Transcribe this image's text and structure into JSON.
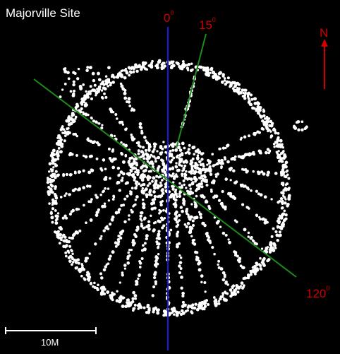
{
  "title": "Majorville Site",
  "bearings": [
    {
      "label": "0",
      "unit": "0",
      "angle_deg": 0
    },
    {
      "label": "15",
      "unit": "0",
      "angle_deg": 15
    },
    {
      "label": "120",
      "unit": "0",
      "angle_deg": 120
    }
  ],
  "north_label": "N",
  "scale_label": "10M",
  "colors": {
    "background": "#000000",
    "dots": "#ffffff",
    "line_0": "#1a1adc",
    "line_15": "#1e8a1e",
    "line_120": "#1e8a1e",
    "labels": "#d00000",
    "north_arrow": "#d00000"
  }
}
